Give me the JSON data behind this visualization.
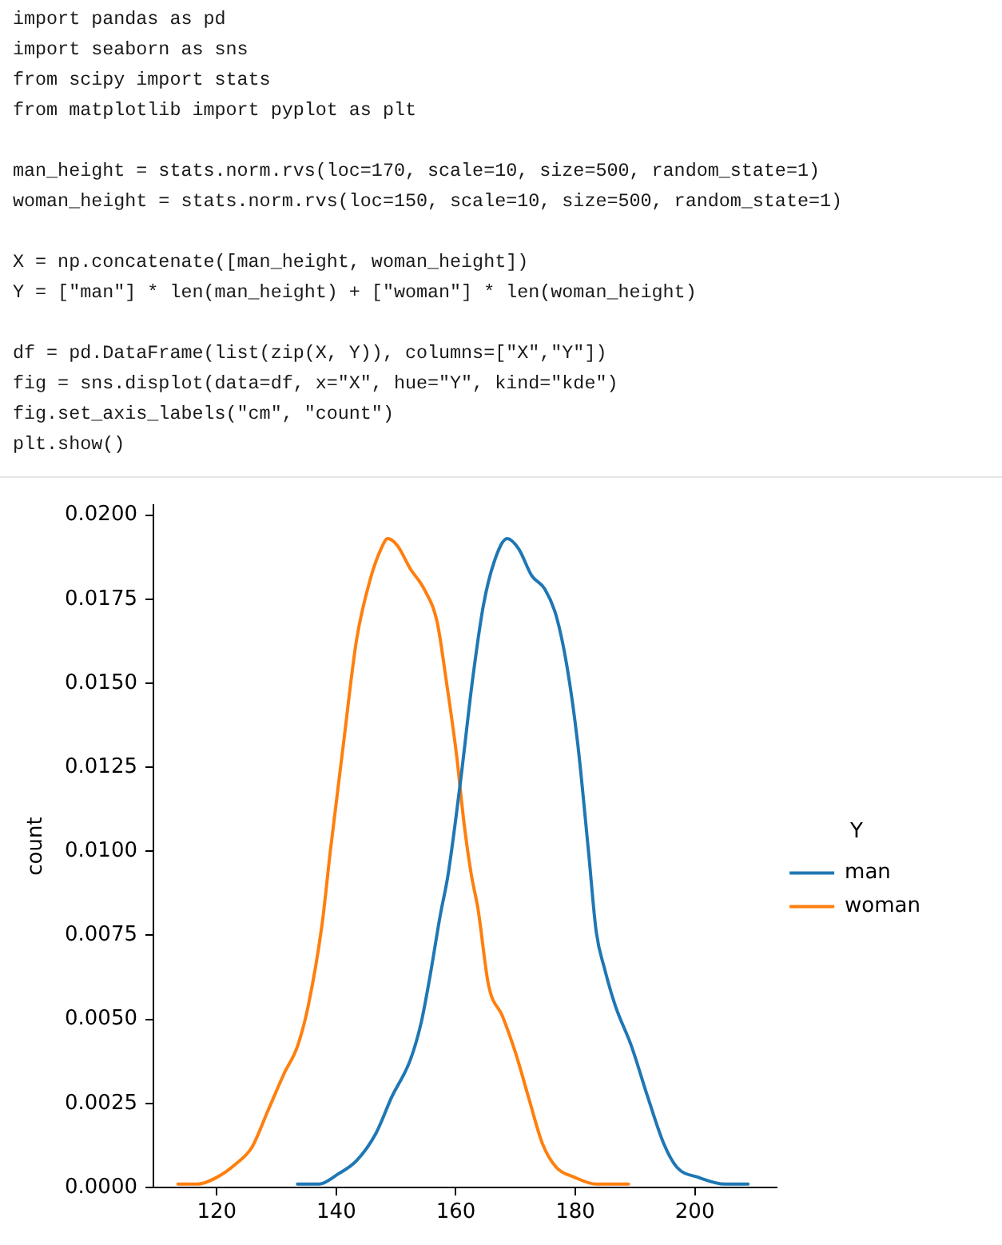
{
  "chart_data": {
    "type": "line",
    "ylabel": "count",
    "legend": "right",
    "legend_title": "Y",
    "marker": "none",
    "xlim": [
      109.4,
      213.7
    ],
    "xticks": [
      120,
      140,
      160,
      180,
      200
    ],
    "ylim": [
      0,
      0.0203
    ],
    "yticks": [
      {
        "value": 0,
        "label": "0.0000"
      },
      {
        "value": 0.0025,
        "label": "0.0025"
      },
      {
        "value": 0.005,
        "label": "0.0050"
      },
      {
        "value": 0.0075,
        "label": "0.0075"
      },
      {
        "value": 0.01,
        "label": "0.0100"
      },
      {
        "value": 0.0125,
        "label": "0.0125"
      },
      {
        "value": 0.015,
        "label": "0.0150"
      },
      {
        "value": 0.0175,
        "label": "0.0175"
      },
      {
        "value": 0.02,
        "label": "0.0200"
      }
    ],
    "series": [
      {
        "name": "man",
        "color": "#1f77b4",
        "x": [
          133.5,
          137.1,
          140.3,
          143.4,
          146.6,
          149.3,
          152.4,
          154.2,
          155.6,
          157.4,
          158.7,
          160.8,
          162.8,
          164.6,
          166.4,
          168.6,
          170.5,
          172.7,
          174.9,
          176.8,
          178.6,
          180.4,
          182.2,
          183.5,
          184.9,
          186.7,
          189.4,
          192.1,
          194.8,
          197.0,
          200.6,
          205.1,
          208.9
        ],
        "values": [
          0.0001,
          0.0001,
          0.0004,
          0.0008,
          0.0016,
          0.0027,
          0.0038,
          0.0049,
          0.0062,
          0.0081,
          0.0093,
          0.0121,
          0.0151,
          0.0173,
          0.0186,
          0.0193,
          0.019,
          0.0182,
          0.0178,
          0.017,
          0.0155,
          0.0132,
          0.01,
          0.0076,
          0.0065,
          0.0054,
          0.0042,
          0.0027,
          0.0013,
          0.0006,
          0.0003,
          0.0001,
          0.0001
        ]
      },
      {
        "name": "woman",
        "color": "#ff7f0e",
        "x": [
          113.5,
          116.8,
          120.0,
          123.2,
          125.9,
          128.6,
          131.3,
          133.5,
          135.3,
          137.6,
          139.0,
          141.2,
          143.4,
          145.7,
          147.5,
          148.6,
          150.2,
          152.4,
          154.7,
          156.9,
          158.3,
          160.1,
          161.4,
          162.6,
          163.7,
          165.5,
          167.8,
          170.0,
          172.3,
          174.5,
          176.8,
          179.9,
          183.5,
          188.9
        ],
        "values": [
          0.0001,
          0.0001,
          0.0003,
          0.0007,
          0.0012,
          0.0023,
          0.0034,
          0.0042,
          0.0054,
          0.0078,
          0.01,
          0.0132,
          0.0163,
          0.0181,
          0.019,
          0.0193,
          0.0191,
          0.0184,
          0.0178,
          0.0168,
          0.0152,
          0.0129,
          0.0108,
          0.0093,
          0.0083,
          0.006,
          0.0051,
          0.004,
          0.0026,
          0.0013,
          0.0006,
          0.0003,
          0.0001,
          0.0001
        ]
      }
    ],
    "annotations": [
      "import pandas as pd\nimport seaborn as sns\nfrom scipy import stats\nfrom matplotlib import pyplot as plt",
      "man_height = stats.norm.rvs(loc=170, scale=10, size=500, random_state=1)\nwoman_height = stats.norm.rvs(loc=150, scale=10, size=500, random_state=1)",
      "X = np.concatenate([man_height, woman_height])\nY = [\"man\"] * len(man_height) + [\"woman\"] * len(woman_height)",
      "df = pd.DataFrame(list(zip(X, Y)), columns=[\"X\",\"Y\"])\nfig = sns.displot(data=df, x=\"X\", hue=\"Y\", kind=\"kde\")\nfig.set_axis_labels(\"cm\", \"count\")\nplt.show()"
    ]
  }
}
